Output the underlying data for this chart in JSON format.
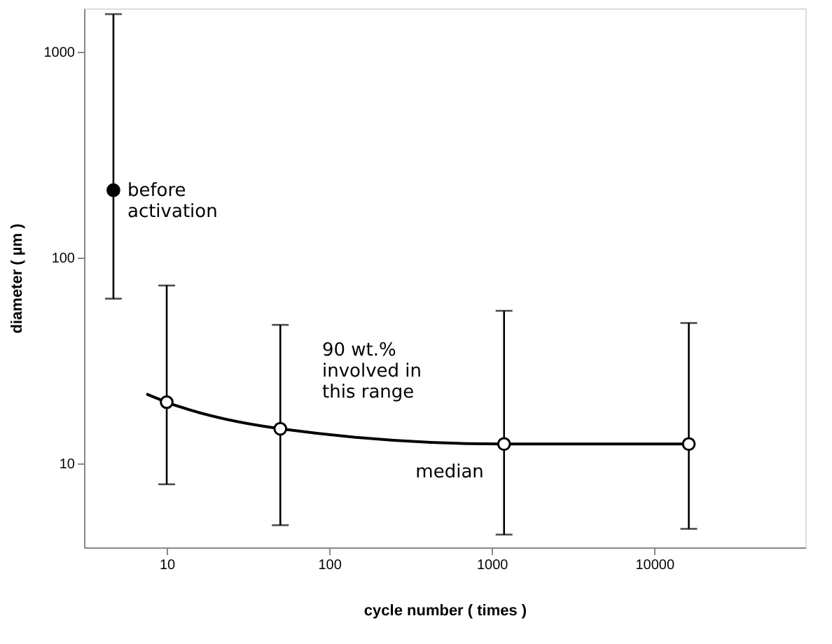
{
  "chart_data": {
    "type": "scatter",
    "xlabel": "cycle number ( times )",
    "ylabel": "diameter ( µm )",
    "log": "xy",
    "xlim": [
      3.1,
      85000
    ],
    "ylim": [
      3.9,
      1620
    ],
    "xticks": [
      10,
      100,
      1000,
      10000
    ],
    "yticks": [
      10,
      100,
      1000
    ],
    "grid": false,
    "marker": "circle",
    "series": [
      {
        "color": "#000000",
        "x": [
          4.7
        ],
        "values": [
          212
        ],
        "errors": [
          [
            63,
            1520
          ]
        ]
      },
      {
        "type": "line",
        "name": "median",
        "color": "#000000",
        "marker": "none",
        "x": [
          7.5,
          10,
          50,
          1190,
          16300
        ],
        "values": [
          21.7,
          19.8,
          14.7,
          12.4,
          12.4
        ]
      },
      {
        "color": "#000000",
        "x": [
          10,
          50,
          1190,
          16300
        ],
        "values": [
          19.8,
          14.7,
          12.4,
          12.4
        ],
        "errors": [
          [
            7.9,
            73
          ],
          [
            5.0,
            47
          ],
          [
            4.5,
            55
          ],
          [
            4.8,
            48
          ]
        ]
      }
    ],
    "annotations": [
      {
        "text": "before\nactivation",
        "x": 4.7,
        "y": 212
      },
      "90 wt.%\ninvolved in\nthis range"
    ]
  }
}
